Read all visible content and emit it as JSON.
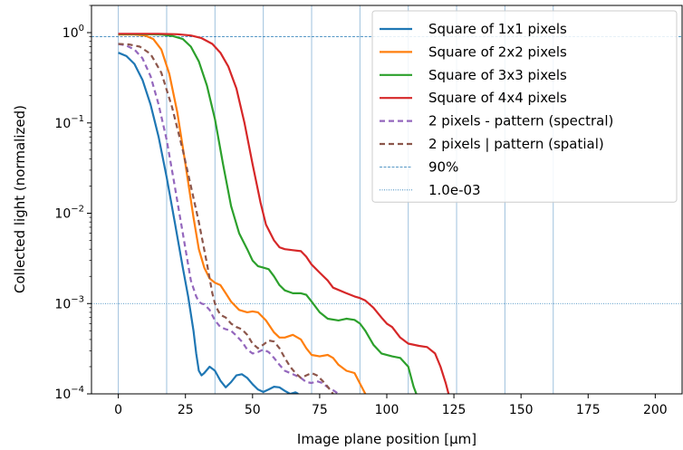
{
  "chart_data": {
    "type": "line",
    "xlabel": "Image plane position [µm]",
    "ylabel": "Collected light (normalized)",
    "xlim": [
      -10,
      210
    ],
    "ylim": [
      0.0001,
      2.0
    ],
    "yscale": "log",
    "xticks": [
      0,
      25,
      50,
      75,
      100,
      125,
      150,
      175,
      200
    ],
    "yticks": [
      {
        "value": 1,
        "exp": "0"
      },
      {
        "value": 0.1,
        "exp": "−1"
      },
      {
        "value": 0.01,
        "exp": "−2"
      },
      {
        "value": 0.001,
        "exp": "−3"
      },
      {
        "value": 0.0001,
        "exp": "−4"
      }
    ],
    "ytick_base": "10",
    "vertical_gridlines_x": [
      0,
      18,
      36,
      54,
      72,
      90,
      108,
      126,
      144,
      162
    ],
    "grid": "vertical lines only",
    "legend_position": "top-right",
    "series": [
      {
        "name": "Square of 1x1 pixels",
        "color": "#1f77b4",
        "style": "solid",
        "x": [
          0,
          3,
          6,
          9,
          12,
          15,
          18,
          21,
          24,
          26,
          28,
          29,
          30,
          31,
          32,
          34,
          35,
          36,
          38,
          40,
          42,
          44,
          46,
          48,
          50,
          52,
          54,
          56,
          58,
          60,
          62,
          64,
          66,
          67
        ],
        "y": [
          0.6,
          0.55,
          0.45,
          0.3,
          0.16,
          0.07,
          0.025,
          0.008,
          0.0025,
          0.0012,
          0.0005,
          0.00028,
          0.00018,
          0.00016,
          0.00017,
          0.0002,
          0.00019,
          0.00018,
          0.00014,
          0.000118,
          0.000135,
          0.00016,
          0.000165,
          0.00015,
          0.000128,
          0.000112,
          0.000105,
          0.000112,
          0.00012,
          0.000118,
          0.000108,
          0.0001,
          0.000104,
          0.0001
        ]
      },
      {
        "name": "Square of 2x2 pixels",
        "color": "#ff7f0e",
        "style": "solid",
        "x": [
          0,
          6,
          10,
          13,
          16,
          19,
          22,
          25,
          28,
          30,
          32,
          34,
          36,
          38,
          40,
          42,
          45,
          48,
          50,
          52,
          55,
          58,
          60,
          62,
          65,
          68,
          70,
          72,
          75,
          78,
          80,
          82,
          85,
          88,
          90,
          92
        ],
        "y": [
          0.95,
          0.95,
          0.93,
          0.85,
          0.65,
          0.35,
          0.13,
          0.035,
          0.009,
          0.004,
          0.0025,
          0.0019,
          0.0017,
          0.0016,
          0.0013,
          0.00105,
          0.00085,
          0.0008,
          0.00082,
          0.0008,
          0.00065,
          0.00048,
          0.00042,
          0.00042,
          0.00045,
          0.0004,
          0.00032,
          0.00027,
          0.00026,
          0.00027,
          0.00025,
          0.00021,
          0.00018,
          0.00017,
          0.00013,
          0.0001
        ]
      },
      {
        "name": "Square of 3x3 pixels",
        "color": "#2ca02c",
        "style": "solid",
        "x": [
          0,
          10,
          16,
          20,
          24,
          27,
          30,
          33,
          36,
          39,
          42,
          45,
          48,
          50,
          52,
          54,
          56,
          58,
          60,
          62,
          65,
          68,
          70,
          72,
          75,
          78,
          82,
          85,
          88,
          90,
          92,
          95,
          98,
          102,
          105,
          108,
          110,
          111
        ],
        "y": [
          0.96,
          0.96,
          0.95,
          0.92,
          0.85,
          0.7,
          0.48,
          0.26,
          0.11,
          0.035,
          0.012,
          0.006,
          0.004,
          0.003,
          0.0026,
          0.0025,
          0.0024,
          0.002,
          0.0016,
          0.0014,
          0.0013,
          0.0013,
          0.00125,
          0.00105,
          0.0008,
          0.00068,
          0.00065,
          0.00068,
          0.00066,
          0.0006,
          0.0005,
          0.00035,
          0.00028,
          0.00026,
          0.00025,
          0.0002,
          0.00012,
          0.0001
        ]
      },
      {
        "name": "Square of 4x4 pixels",
        "color": "#d62728",
        "style": "solid",
        "x": [
          0,
          15,
          22,
          27,
          31,
          35,
          38,
          41,
          44,
          47,
          50,
          53,
          55,
          58,
          60,
          62,
          65,
          68,
          70,
          72,
          75,
          78,
          80,
          85,
          88,
          90,
          92,
          95,
          98,
          100,
          102,
          105,
          108,
          112,
          115,
          118,
          120,
          122,
          123
        ],
        "y": [
          0.97,
          0.97,
          0.96,
          0.93,
          0.87,
          0.75,
          0.6,
          0.42,
          0.24,
          0.1,
          0.035,
          0.013,
          0.0075,
          0.005,
          0.0042,
          0.004,
          0.0039,
          0.0038,
          0.0033,
          0.0027,
          0.0022,
          0.0018,
          0.0015,
          0.0013,
          0.0012,
          0.00115,
          0.00108,
          0.0009,
          0.0007,
          0.0006,
          0.00055,
          0.00042,
          0.00036,
          0.00034,
          0.00033,
          0.00028,
          0.0002,
          0.00013,
          0.0001
        ]
      },
      {
        "name": "2 pixels - pattern (spectral)",
        "color": "#9467bd",
        "style": "dashed",
        "x": [
          0,
          3,
          6,
          9,
          12,
          15,
          18,
          21,
          24,
          27,
          29,
          30,
          31,
          32,
          34,
          36,
          38,
          40,
          42,
          44,
          46,
          48,
          50,
          52,
          54,
          56,
          58,
          60,
          62,
          64,
          66,
          68,
          70,
          72,
          74,
          76,
          78,
          80,
          82
        ],
        "y": [
          0.75,
          0.72,
          0.65,
          0.52,
          0.33,
          0.16,
          0.065,
          0.02,
          0.006,
          0.0018,
          0.0012,
          0.00105,
          0.001,
          0.00098,
          0.00085,
          0.00065,
          0.00055,
          0.00052,
          0.0005,
          0.00044,
          0.00038,
          0.00031,
          0.00028,
          0.00029,
          0.00031,
          0.00029,
          0.00025,
          0.00021,
          0.00018,
          0.00017,
          0.00016,
          0.00015,
          0.000135,
          0.000132,
          0.000138,
          0.000132,
          0.000118,
          0.00011,
          0.0001
        ]
      },
      {
        "name": "2 pixels | pattern (spatial)",
        "color": "#8c564b",
        "style": "dashed",
        "x": [
          0,
          4,
          8,
          12,
          16,
          20,
          24,
          27,
          30,
          33,
          35,
          36,
          37,
          38,
          40,
          42,
          44,
          46,
          48,
          50,
          52,
          54,
          56,
          58,
          60,
          62,
          64,
          66,
          68,
          70,
          72,
          74,
          76,
          78,
          80
        ],
        "y": [
          0.75,
          0.74,
          0.7,
          0.58,
          0.36,
          0.15,
          0.05,
          0.02,
          0.008,
          0.0028,
          0.0013,
          0.001,
          0.00085,
          0.00075,
          0.0007,
          0.0006,
          0.00055,
          0.00052,
          0.00045,
          0.00036,
          0.00032,
          0.00035,
          0.00039,
          0.00038,
          0.00032,
          0.00025,
          0.0002,
          0.00017,
          0.00015,
          0.00016,
          0.00017,
          0.00016,
          0.00014,
          0.00012,
          0.0001
        ]
      }
    ],
    "reference_lines": [
      {
        "name": "90%",
        "value": 0.9,
        "color": "#1f77b4",
        "style": "dashed"
      },
      {
        "name": "1.0e-03",
        "value": 0.001,
        "color": "#1f77b4",
        "style": "dotted"
      }
    ]
  }
}
